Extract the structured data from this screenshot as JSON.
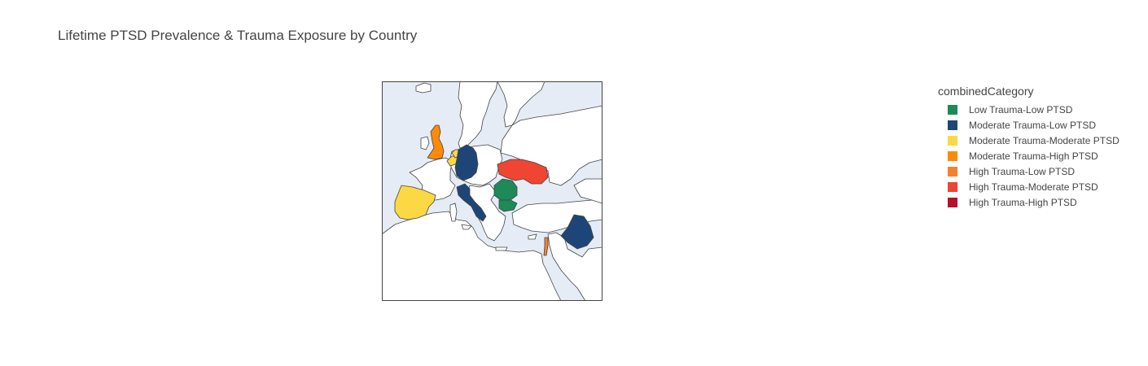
{
  "chart": {
    "title": "Lifetime PTSD Prevalence & Trauma Exposure by Country"
  },
  "legend": {
    "title": "combinedCategory",
    "items": [
      {
        "label": "Low Trauma-Low PTSD",
        "color": "#1d8a57"
      },
      {
        "label": "Moderate Trauma-Low PTSD",
        "color": "#1e4577"
      },
      {
        "label": "Moderate Trauma-Moderate PTSD",
        "color": "#fdd845"
      },
      {
        "label": "Moderate Trauma-High PTSD",
        "color": "#fd8a0b"
      },
      {
        "label": "High Trauma-Low PTSD",
        "color": "#f28231"
      },
      {
        "label": "High Trauma-Moderate PTSD",
        "color": "#ef4532"
      },
      {
        "label": "High Trauma-High PTSD",
        "color": "#b5112a"
      }
    ]
  },
  "map": {
    "ocean_color": "#e5ecf6",
    "land_color": "#ffffff",
    "border_color": "#444444",
    "regions": [
      {
        "name": "United Kingdom",
        "category": "Moderate Trauma-High PTSD"
      },
      {
        "name": "Belgium",
        "category": "Moderate Trauma-Moderate PTSD"
      },
      {
        "name": "Netherlands",
        "category": "Moderate Trauma-Moderate PTSD"
      },
      {
        "name": "Germany",
        "category": "Moderate Trauma-Low PTSD"
      },
      {
        "name": "Spain",
        "category": "Moderate Trauma-Moderate PTSD"
      },
      {
        "name": "Italy",
        "category": "Moderate Trauma-Low PTSD"
      },
      {
        "name": "Ukraine",
        "category": "High Trauma-Moderate PTSD"
      },
      {
        "name": "Romania",
        "category": "Low Trauma-Low PTSD"
      },
      {
        "name": "Bulgaria",
        "category": "Low Trauma-Low PTSD"
      },
      {
        "name": "Iraq",
        "category": "Moderate Trauma-Low PTSD"
      },
      {
        "name": "Israel",
        "category": "High Trauma-Low PTSD"
      }
    ]
  }
}
